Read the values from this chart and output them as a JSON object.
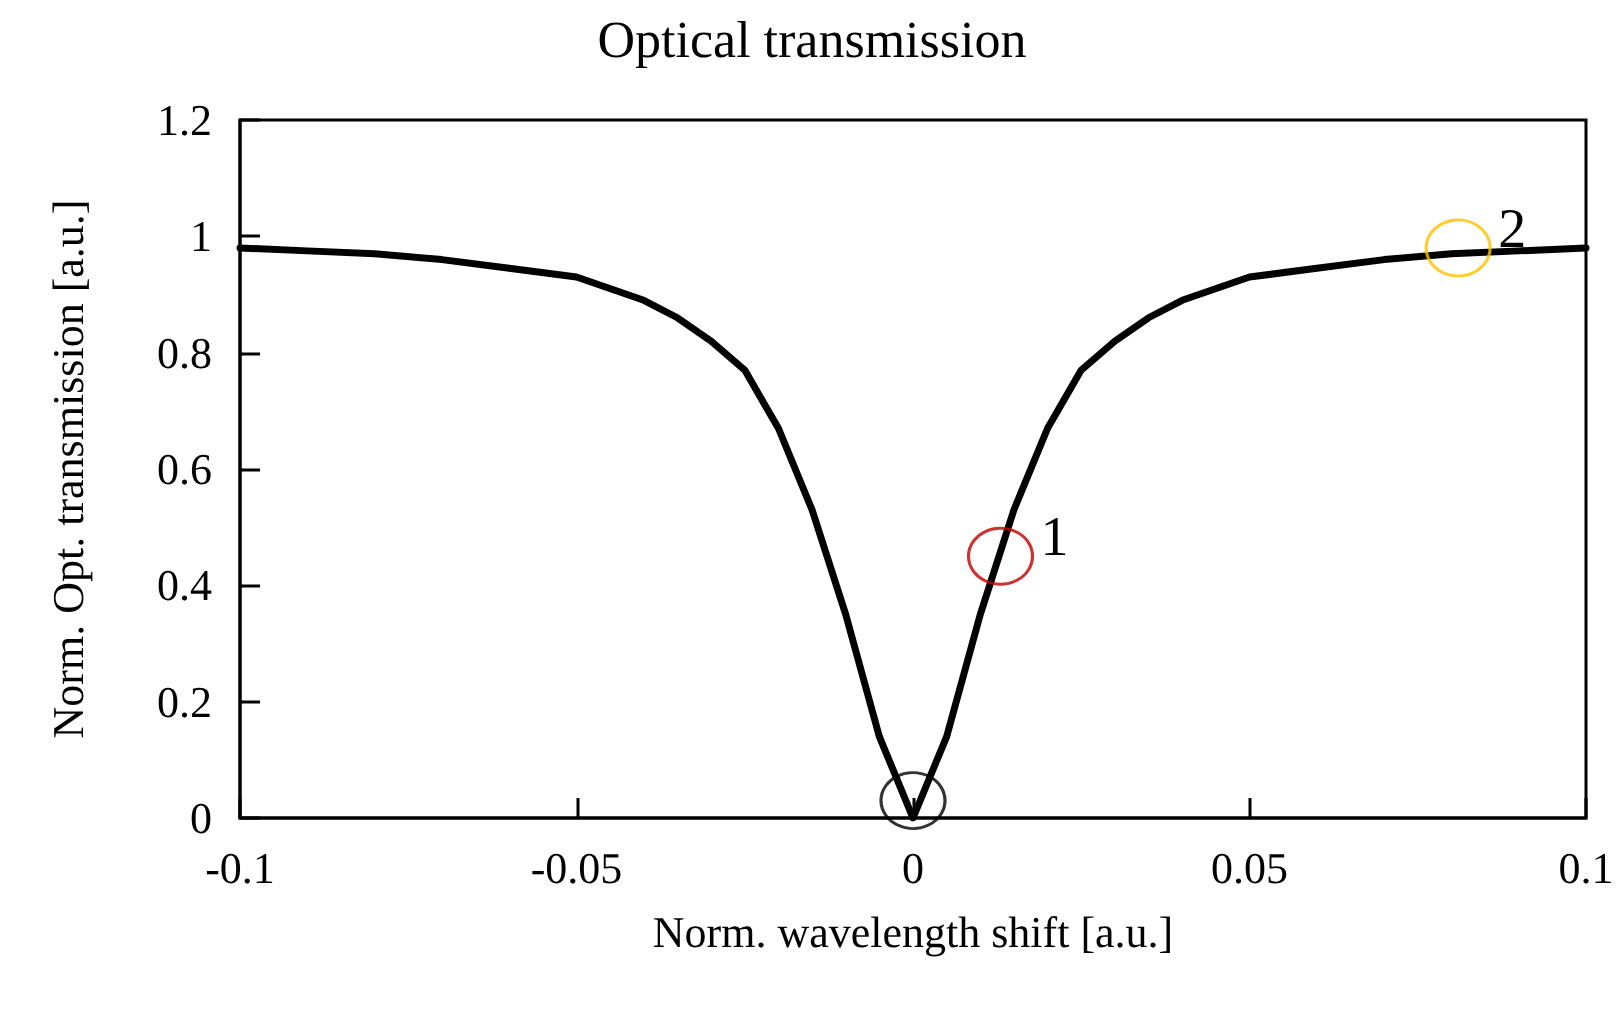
{
  "chart_data": {
    "type": "line",
    "title": "Optical transmission",
    "xlabel": "Norm. wavelength shift [a.u.]",
    "ylabel": "Norm. Opt. transmission [a.u.]",
    "xlim": [
      -0.1,
      0.1
    ],
    "xticks": [
      -0.1,
      -0.05,
      0,
      0.05,
      0.1
    ],
    "ylim": [
      0,
      1.2
    ],
    "yticks": [
      0,
      0.2,
      0.4,
      0.6,
      0.8,
      1,
      1.2
    ],
    "grid": false,
    "marker": "none",
    "line_style": "solid",
    "series": [
      {
        "color": "#000000",
        "x": [
          -0.1,
          -0.09,
          -0.08,
          -0.07,
          -0.06,
          -0.05,
          -0.04,
          -0.035,
          -0.03,
          -0.025,
          -0.02,
          -0.015,
          -0.01,
          -0.005,
          0,
          0.005,
          0.01,
          0.015,
          0.02,
          0.025,
          0.03,
          0.035,
          0.04,
          0.05,
          0.06,
          0.07,
          0.08,
          0.09,
          0.1
        ],
        "values": [
          0.98,
          0.975,
          0.97,
          0.96,
          0.945,
          0.93,
          0.89,
          0.86,
          0.82,
          0.77,
          0.67,
          0.53,
          0.35,
          0.14,
          0,
          0.14,
          0.35,
          0.53,
          0.67,
          0.77,
          0.82,
          0.86,
          0.89,
          0.93,
          0.945,
          0.96,
          0.97,
          0.975,
          0.98
        ]
      },
      {
        "type": "scatter",
        "marker": "circle",
        "x": [
          0,
          0.013,
          0.081
        ],
        "values": [
          0.03,
          0.45,
          0.98
        ],
        "colors": [
          "#000000",
          "#c00000",
          "#ffc000"
        ]
      }
    ],
    "annotations": [
      {
        "text": "1",
        "x": 0.013,
        "y": 0.45
      },
      {
        "text": "2",
        "x": 0.081,
        "y": 0.98
      }
    ]
  }
}
